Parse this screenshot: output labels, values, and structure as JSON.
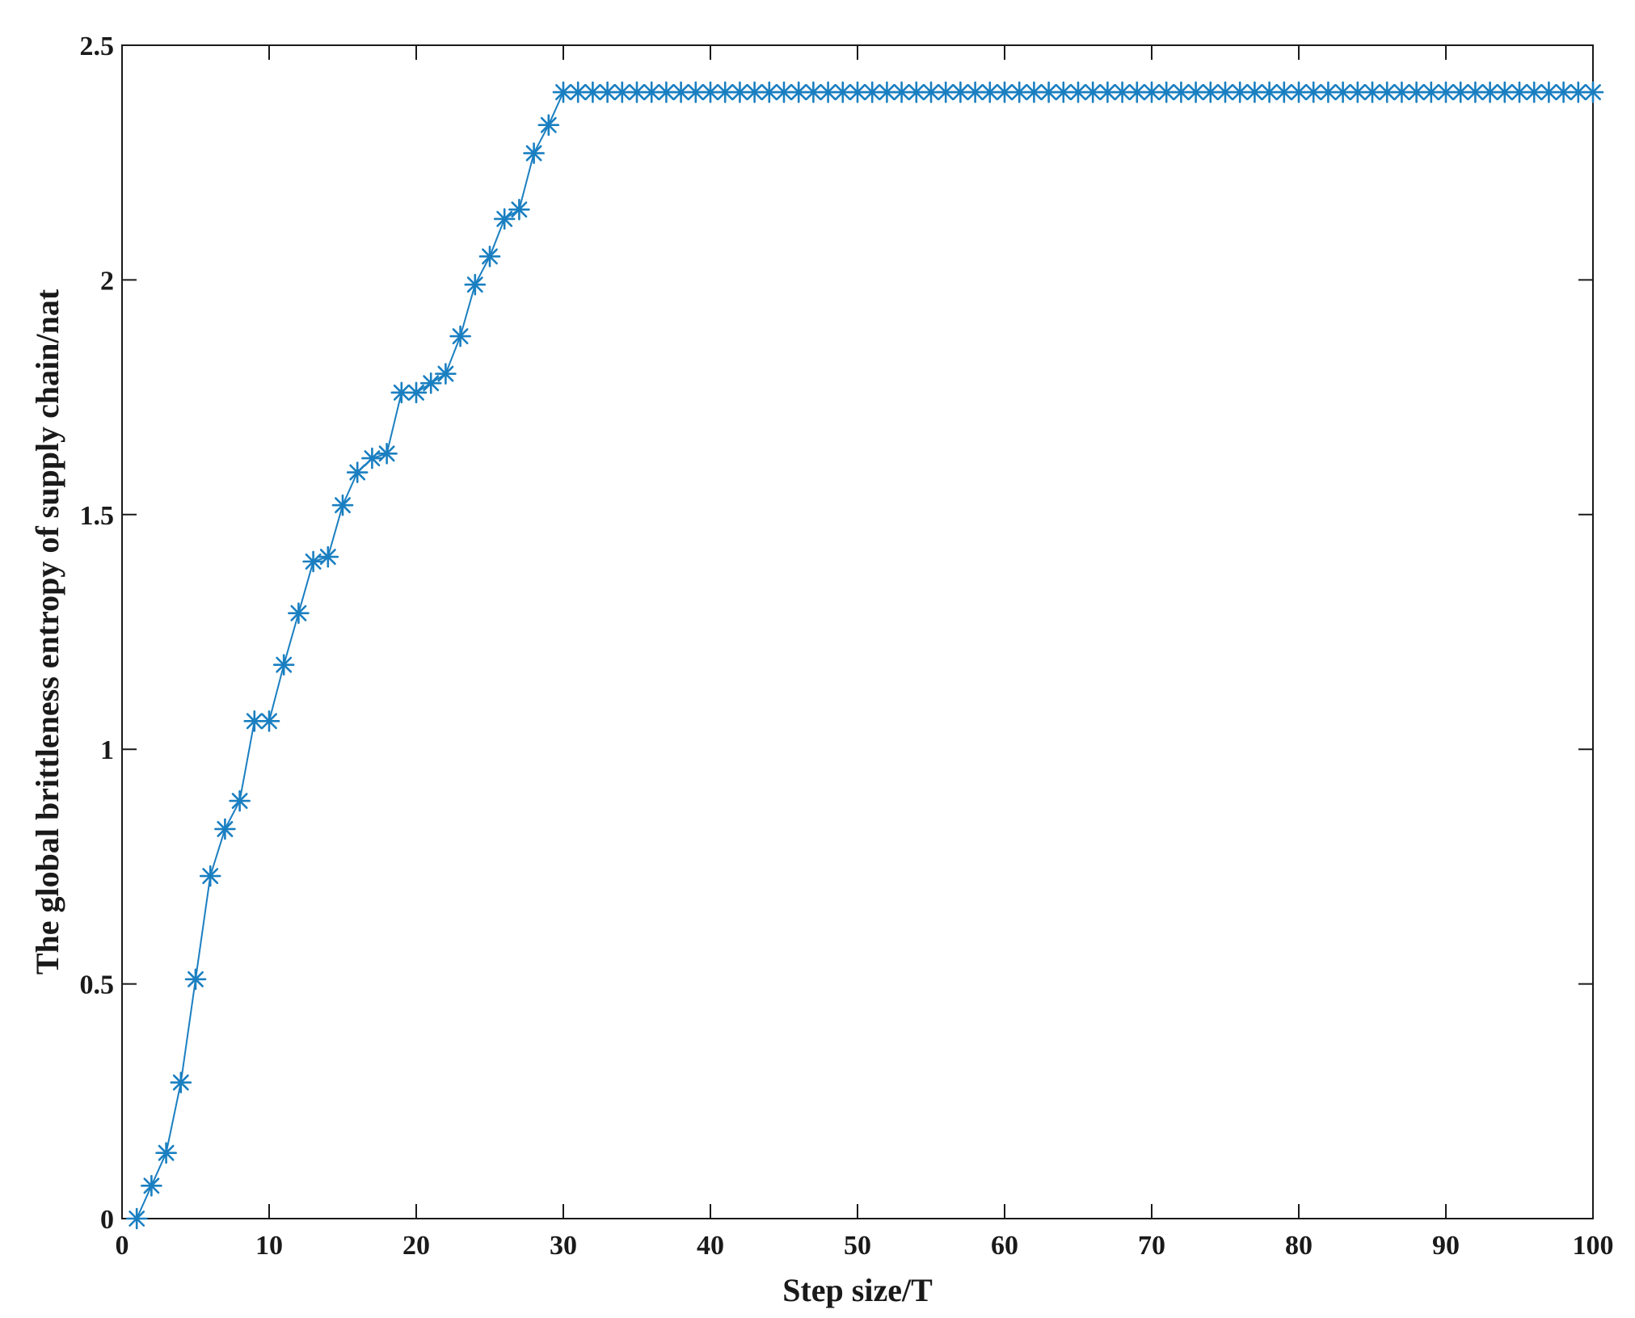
{
  "chart_data": {
    "type": "line",
    "xlabel": "Step size/T",
    "ylabel": "The global brittleness entropy of supply chain/nat",
    "xlim": [
      0,
      100
    ],
    "ylim": [
      0,
      2.5
    ],
    "xticks": [
      "0",
      "10",
      "20",
      "30",
      "40",
      "50",
      "60",
      "70",
      "80",
      "90",
      "100"
    ],
    "yticks": [
      "0",
      "0.5",
      "1",
      "1.5",
      "2",
      "2.5"
    ],
    "grid": false,
    "marker": "asterisk",
    "color": "#1a7fc1",
    "series": [
      {
        "x": [
          1,
          2,
          3,
          4,
          5,
          6,
          7,
          8,
          9,
          10,
          11,
          12,
          13,
          14,
          15,
          16,
          17,
          18,
          19,
          20,
          21,
          22,
          23,
          24,
          25,
          26,
          27,
          28,
          29,
          30,
          31,
          32,
          33,
          34,
          35,
          36,
          37,
          38,
          39,
          40,
          41,
          42,
          43,
          44,
          45,
          46,
          47,
          48,
          49,
          50,
          51,
          52,
          53,
          54,
          55,
          56,
          57,
          58,
          59,
          60,
          61,
          62,
          63,
          64,
          65,
          66,
          67,
          68,
          69,
          70,
          71,
          72,
          73,
          74,
          75,
          76,
          77,
          78,
          79,
          80,
          81,
          82,
          83,
          84,
          85,
          86,
          87,
          88,
          89,
          90,
          91,
          92,
          93,
          94,
          95,
          96,
          97,
          98,
          99,
          100
        ],
        "y": [
          0.0,
          0.07,
          0.14,
          0.29,
          0.51,
          0.73,
          0.83,
          0.89,
          1.06,
          1.06,
          1.18,
          1.29,
          1.4,
          1.41,
          1.52,
          1.59,
          1.62,
          1.63,
          1.76,
          1.76,
          1.78,
          1.8,
          1.88,
          1.99,
          2.05,
          2.13,
          2.15,
          2.27,
          2.33,
          2.4,
          2.4,
          2.4,
          2.4,
          2.4,
          2.4,
          2.4,
          2.4,
          2.4,
          2.4,
          2.4,
          2.4,
          2.4,
          2.4,
          2.4,
          2.4,
          2.4,
          2.4,
          2.4,
          2.4,
          2.4,
          2.4,
          2.4,
          2.4,
          2.4,
          2.4,
          2.4,
          2.4,
          2.4,
          2.4,
          2.4,
          2.4,
          2.4,
          2.4,
          2.4,
          2.4,
          2.4,
          2.4,
          2.4,
          2.4,
          2.4,
          2.4,
          2.4,
          2.4,
          2.4,
          2.4,
          2.4,
          2.4,
          2.4,
          2.4,
          2.4,
          2.4,
          2.4,
          2.4,
          2.4,
          2.4,
          2.4,
          2.4,
          2.4,
          2.4,
          2.4,
          2.4,
          2.4,
          2.4,
          2.4,
          2.4,
          2.4,
          2.4,
          2.4,
          2.4,
          2.4
        ]
      }
    ]
  }
}
